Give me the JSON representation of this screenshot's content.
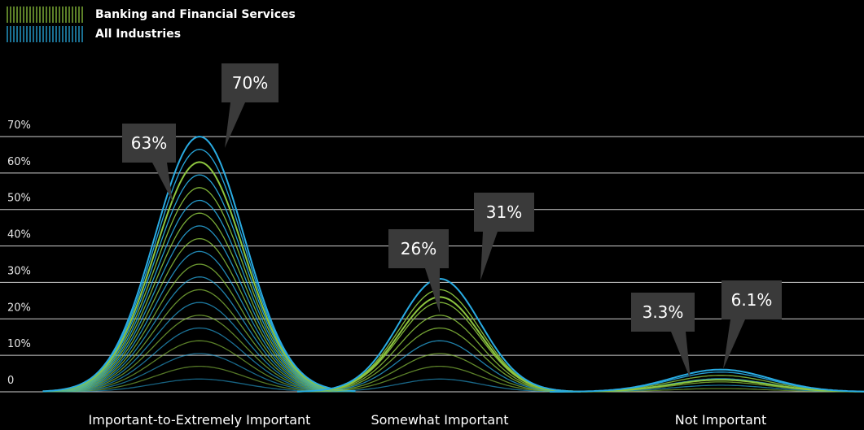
{
  "legend": {
    "items": [
      {
        "label": "Banking and Financial Services",
        "color": "#8dc63f"
      },
      {
        "label": "All Industries",
        "color": "#29abe2"
      }
    ]
  },
  "chart_data": {
    "type": "area",
    "categories": [
      "Important-to-Extremely Important",
      "Somewhat Important",
      "Not Important"
    ],
    "series": [
      {
        "name": "Banking and Financial Services",
        "color": "#8dc63f",
        "values": [
          63,
          26,
          3.3
        ],
        "labels": [
          "63%",
          "26%",
          "3.3%"
        ]
      },
      {
        "name": "All Industries",
        "color": "#29abe2",
        "values": [
          70,
          31,
          6.1
        ],
        "labels": [
          "70%",
          "31%",
          "6.1%"
        ]
      }
    ],
    "y_ticks": [
      0,
      10,
      20,
      30,
      40,
      50,
      60,
      70
    ],
    "y_tick_labels": [
      "0",
      "10%",
      "20%",
      "30%",
      "40%",
      "50%",
      "60%",
      "70%"
    ],
    "ylim": [
      0,
      70
    ],
    "grid": true,
    "legend_position": "top-left"
  }
}
